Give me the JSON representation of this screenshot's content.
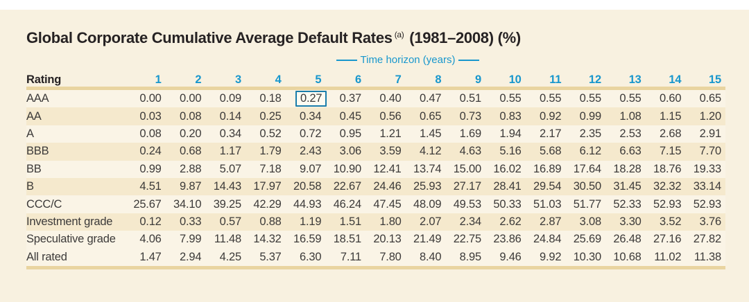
{
  "title": {
    "main": "Global Corporate Cumulative Average Default Rates",
    "footnote_marker": "(a)",
    "suffix": "(1981–2008) (%)"
  },
  "colors": {
    "accent_teal": "#1897cd",
    "highlight_border": "#1a7dab",
    "panel_background": "#f8f1e0",
    "shaded_row": "#f5e9cd",
    "light_row": "#faf4e6",
    "table_border_band": "#e9d4a0",
    "text": "#3c3a39"
  },
  "table": {
    "axis_label": "Time horizon (years)",
    "rating_header": "Rating",
    "columns": [
      "1",
      "2",
      "3",
      "4",
      "5",
      "6",
      "7",
      "8",
      "9",
      "10",
      "11",
      "12",
      "13",
      "14",
      "15"
    ],
    "highlight": {
      "row_label": "AAA",
      "column": "5",
      "value": "0.27"
    },
    "rows": [
      {
        "label": "AAA",
        "shade": false,
        "values": [
          "0.00",
          "0.00",
          "0.09",
          "0.18",
          "0.27",
          "0.37",
          "0.40",
          "0.47",
          "0.51",
          "0.55",
          "0.55",
          "0.55",
          "0.55",
          "0.60",
          "0.65"
        ]
      },
      {
        "label": "AA",
        "shade": true,
        "values": [
          "0.03",
          "0.08",
          "0.14",
          "0.25",
          "0.34",
          "0.45",
          "0.56",
          "0.65",
          "0.73",
          "0.83",
          "0.92",
          "0.99",
          "1.08",
          "1.15",
          "1.20"
        ]
      },
      {
        "label": "A",
        "shade": false,
        "values": [
          "0.08",
          "0.20",
          "0.34",
          "0.52",
          "0.72",
          "0.95",
          "1.21",
          "1.45",
          "1.69",
          "1.94",
          "2.17",
          "2.35",
          "2.53",
          "2.68",
          "2.91"
        ]
      },
      {
        "label": "BBB",
        "shade": true,
        "values": [
          "0.24",
          "0.68",
          "1.17",
          "1.79",
          "2.43",
          "3.06",
          "3.59",
          "4.12",
          "4.63",
          "5.16",
          "5.68",
          "6.12",
          "6.63",
          "7.15",
          "7.70"
        ]
      },
      {
        "label": "BB",
        "shade": false,
        "values": [
          "0.99",
          "2.88",
          "5.07",
          "7.18",
          "9.07",
          "10.90",
          "12.41",
          "13.74",
          "15.00",
          "16.02",
          "16.89",
          "17.64",
          "18.28",
          "18.76",
          "19.33"
        ]
      },
      {
        "label": "B",
        "shade": true,
        "values": [
          "4.51",
          "9.87",
          "14.43",
          "17.97",
          "20.58",
          "22.67",
          "24.46",
          "25.93",
          "27.17",
          "28.41",
          "29.54",
          "30.50",
          "31.45",
          "32.32",
          "33.14"
        ]
      },
      {
        "label": "CCC/C",
        "shade": false,
        "values": [
          "25.67",
          "34.10",
          "39.25",
          "42.29",
          "44.93",
          "46.24",
          "47.45",
          "48.09",
          "49.53",
          "50.33",
          "51.03",
          "51.77",
          "52.33",
          "52.93",
          "52.93"
        ]
      },
      {
        "label": "Investment grade",
        "shade": true,
        "values": [
          "0.12",
          "0.33",
          "0.57",
          "0.88",
          "1.19",
          "1.51",
          "1.80",
          "2.07",
          "2.34",
          "2.62",
          "2.87",
          "3.08",
          "3.30",
          "3.52",
          "3.76"
        ]
      },
      {
        "label": "Speculative grade",
        "shade": false,
        "values": [
          "4.06",
          "7.99",
          "11.48",
          "14.32",
          "16.59",
          "18.51",
          "20.13",
          "21.49",
          "22.75",
          "23.86",
          "24.84",
          "25.69",
          "26.48",
          "27.16",
          "27.82"
        ]
      },
      {
        "label": "All rated",
        "shade": false,
        "values": [
          "1.47",
          "2.94",
          "4.25",
          "5.37",
          "6.30",
          "7.11",
          "7.80",
          "8.40",
          "8.95",
          "9.46",
          "9.92",
          "10.30",
          "10.68",
          "11.02",
          "11.38"
        ]
      }
    ]
  }
}
